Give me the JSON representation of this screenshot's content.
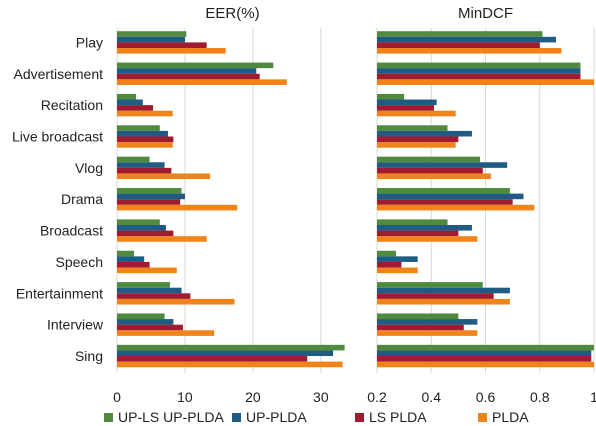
{
  "chart_data": [
    {
      "type": "bar",
      "orientation": "horizontal",
      "title": "EER(%)",
      "categories": [
        "Play",
        "Advertisement",
        "Recitation",
        "Live broadcast",
        "Vlog",
        "Drama",
        "Broadcast",
        "Speech",
        "Entertainment",
        "Interview",
        "Sing"
      ],
      "series": [
        {
          "name": "UP-LS UP-PLDA",
          "values": [
            10.2,
            23.0,
            2.8,
            6.3,
            4.8,
            9.5,
            6.3,
            2.5,
            7.8,
            7.0,
            33.5
          ]
        },
        {
          "name": "UP-PLDA",
          "values": [
            10.0,
            20.5,
            3.8,
            7.5,
            7.0,
            10.0,
            7.2,
            4.0,
            9.5,
            8.3,
            31.8
          ]
        },
        {
          "name": "LS PLDA",
          "values": [
            13.2,
            21.0,
            5.3,
            8.3,
            8.0,
            9.3,
            8.3,
            4.8,
            10.8,
            9.7,
            28.0
          ]
        },
        {
          "name": "PLDA",
          "values": [
            16.0,
            25.0,
            8.2,
            8.2,
            13.7,
            17.7,
            13.2,
            8.8,
            17.3,
            14.3,
            33.2
          ]
        }
      ],
      "xlim": [
        0,
        34
      ],
      "xticks": [
        "0",
        "10",
        "20",
        "30"
      ],
      "grid": "vertical"
    },
    {
      "type": "bar",
      "orientation": "horizontal",
      "title": "MinDCF",
      "categories": [
        "Play",
        "Advertisement",
        "Recitation",
        "Live broadcast",
        "Vlog",
        "Drama",
        "Broadcast",
        "Speech",
        "Entertainment",
        "Interview",
        "Sing"
      ],
      "series": [
        {
          "name": "UP-LS UP-PLDA",
          "values": [
            0.81,
            0.95,
            0.3,
            0.46,
            0.58,
            0.69,
            0.46,
            0.27,
            0.59,
            0.5,
            1.0
          ]
        },
        {
          "name": "UP-PLDA",
          "values": [
            0.86,
            0.95,
            0.42,
            0.55,
            0.68,
            0.74,
            0.55,
            0.35,
            0.69,
            0.57,
            0.99
          ]
        },
        {
          "name": "LS PLDA",
          "values": [
            0.8,
            0.95,
            0.41,
            0.5,
            0.59,
            0.7,
            0.5,
            0.29,
            0.63,
            0.52,
            0.99
          ]
        },
        {
          "name": "PLDA",
          "values": [
            0.88,
            1.0,
            0.49,
            0.49,
            0.62,
            0.78,
            0.57,
            0.35,
            0.69,
            0.57,
            1.0
          ]
        }
      ],
      "xlim": [
        0.2,
        1.0
      ],
      "xticks": [
        "0.2",
        "0.4",
        "0.6",
        "0.8",
        "1"
      ],
      "grid": "vertical"
    }
  ],
  "legend": {
    "position": "bottom",
    "items": [
      "UP-LS UP-PLDA",
      "UP-PLDA",
      "LS PLDA",
      "PLDA"
    ]
  },
  "colors": [
    "#4f8a3e",
    "#1f5b82",
    "#9e1b32",
    "#f0831a"
  ],
  "colors_series": [
    "UP-LS UP-PLDA",
    "UP-PLDA",
    "LS PLDA",
    "PLDA"
  ]
}
